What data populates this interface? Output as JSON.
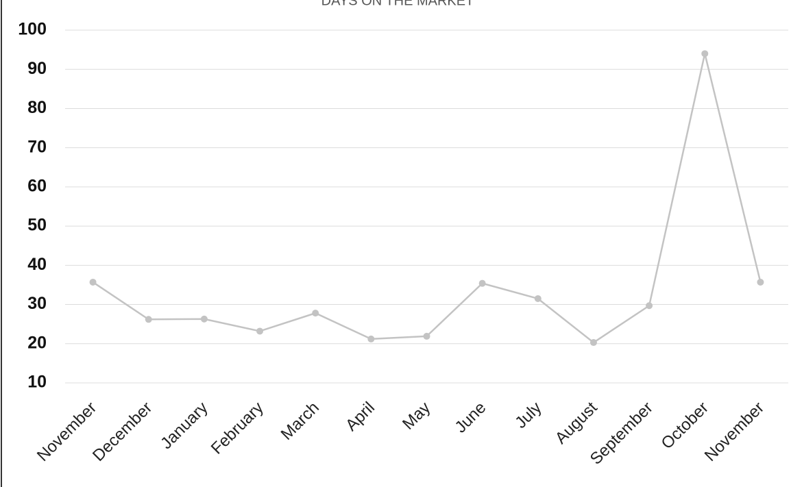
{
  "chart_data": {
    "type": "line",
    "title": "DAYS ON THE MARKET",
    "categories": [
      "November",
      "December",
      "January",
      "February",
      "March",
      "April",
      "May",
      "June",
      "July",
      "August",
      "September",
      "October",
      "November"
    ],
    "values": [
      35.7,
      26.2,
      26.3,
      23.2,
      27.8,
      21.2,
      21.9,
      35.4,
      31.5,
      20.3,
      29.7,
      94,
      35.7
    ],
    "color": "#c3c3c3",
    "ylim": [
      10,
      100
    ],
    "yticks": [
      10,
      20,
      30,
      40,
      50,
      60,
      70,
      80,
      90,
      100
    ],
    "grid": true
  }
}
